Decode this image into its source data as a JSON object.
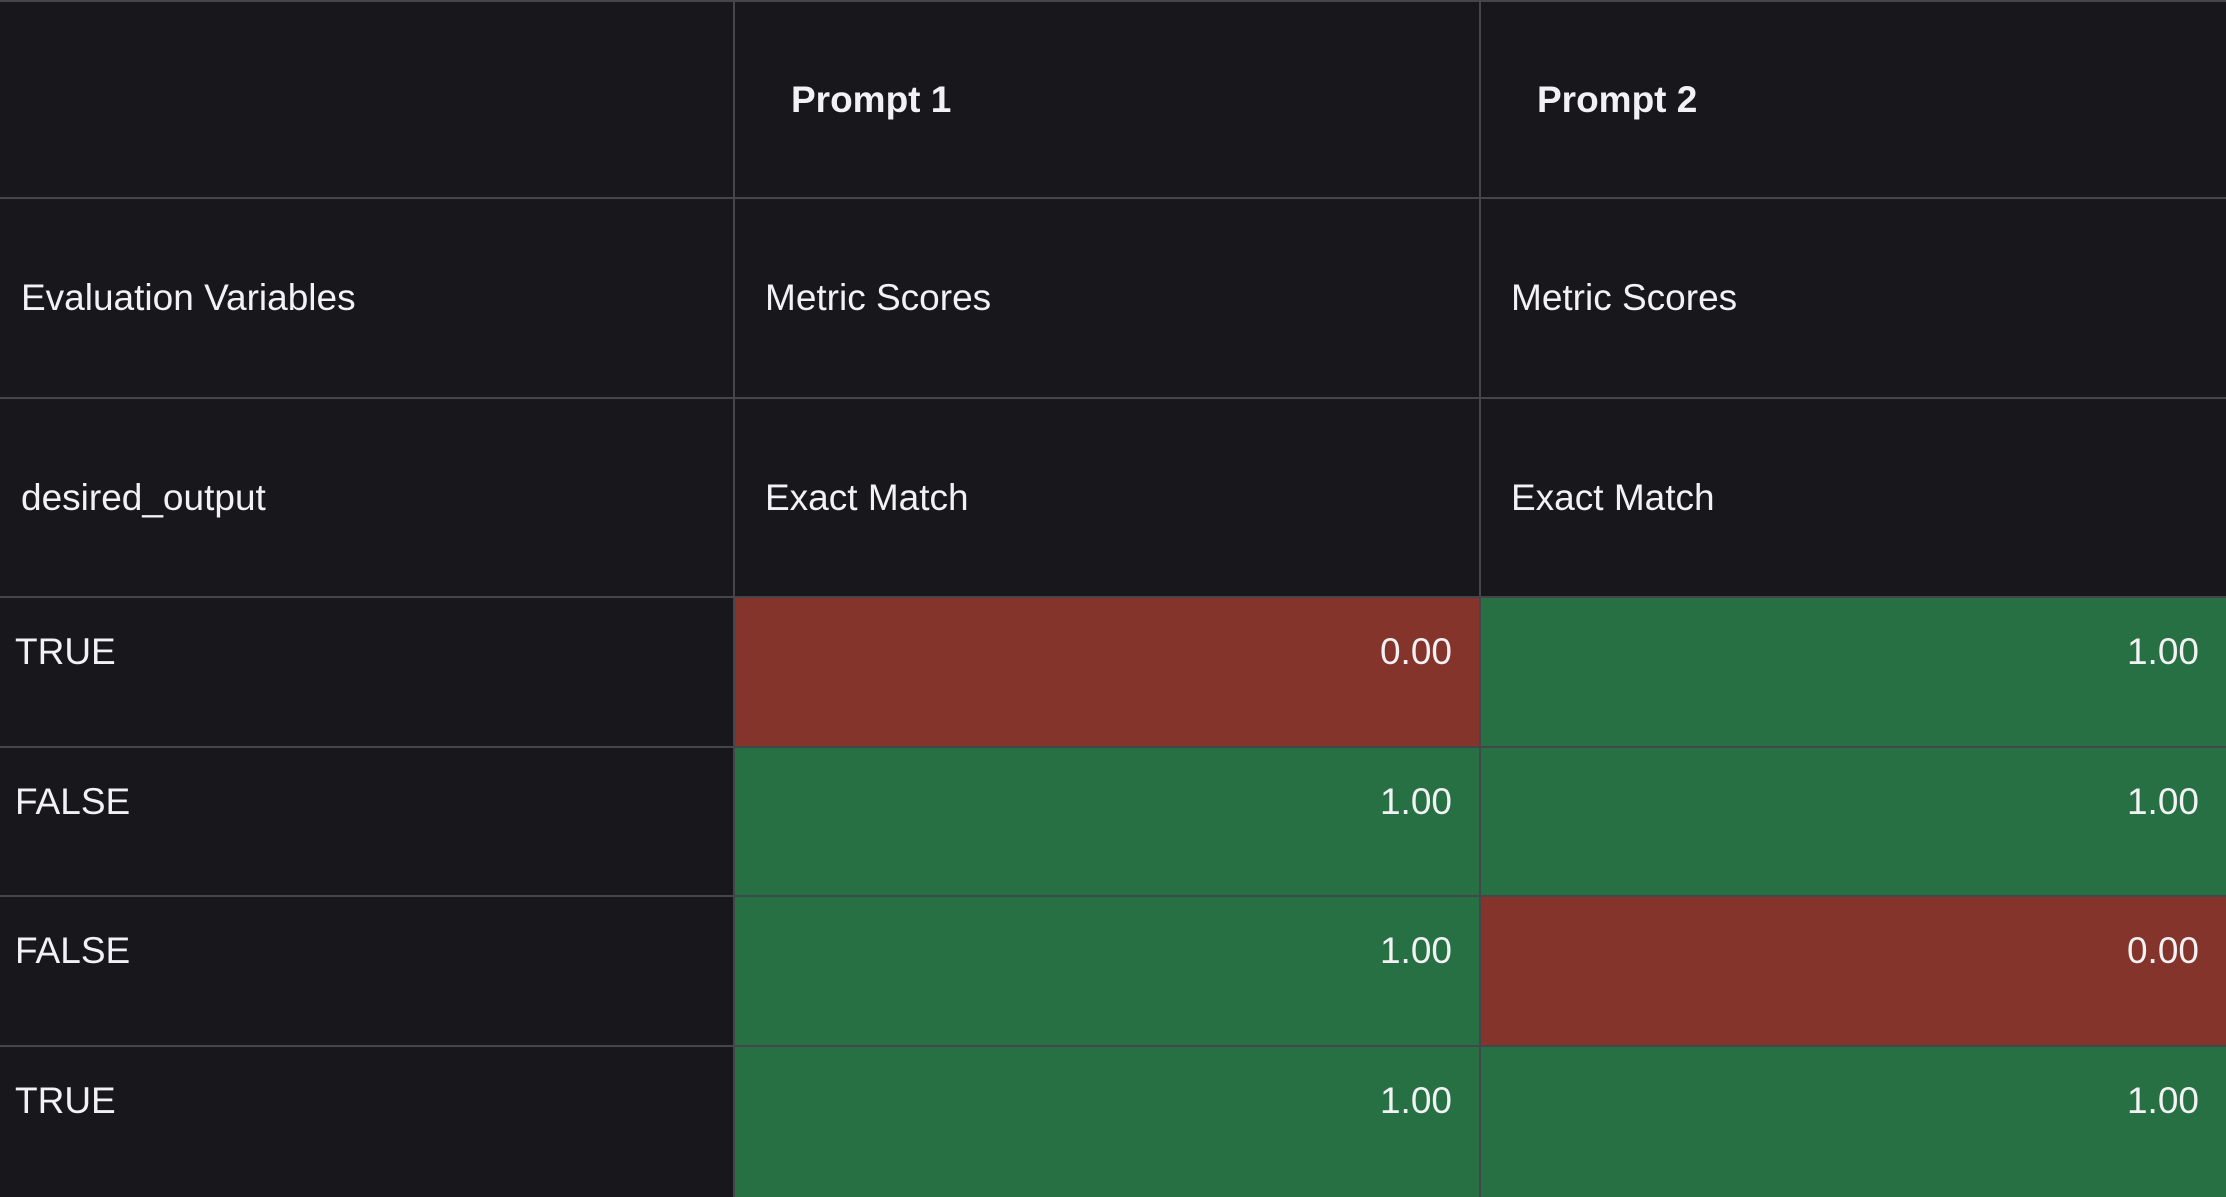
{
  "header": {
    "corner_label": "",
    "prompts": [
      "Prompt 1",
      "Prompt 2"
    ]
  },
  "subheader": {
    "variables_label": "Evaluation Variables",
    "scores_label": "Metric Scores"
  },
  "columns_row": {
    "variable": "desired_output",
    "metric": "Exact Match"
  },
  "rows": [
    {
      "desired_output": "TRUE",
      "scores": [
        "0.00",
        "1.00"
      ],
      "status": [
        "fail",
        "pass"
      ]
    },
    {
      "desired_output": "FALSE",
      "scores": [
        "1.00",
        "1.00"
      ],
      "status": [
        "pass",
        "pass"
      ]
    },
    {
      "desired_output": "FALSE",
      "scores": [
        "1.00",
        "0.00"
      ],
      "status": [
        "pass",
        "fail"
      ]
    },
    {
      "desired_output": "TRUE",
      "scores": [
        "1.00",
        "1.00"
      ],
      "status": [
        "pass",
        "pass"
      ]
    }
  ],
  "colors": {
    "background": "#17171c",
    "border": "#45454c",
    "pass": "#267044",
    "fail": "#84342a",
    "text": "#f2f2f4"
  }
}
